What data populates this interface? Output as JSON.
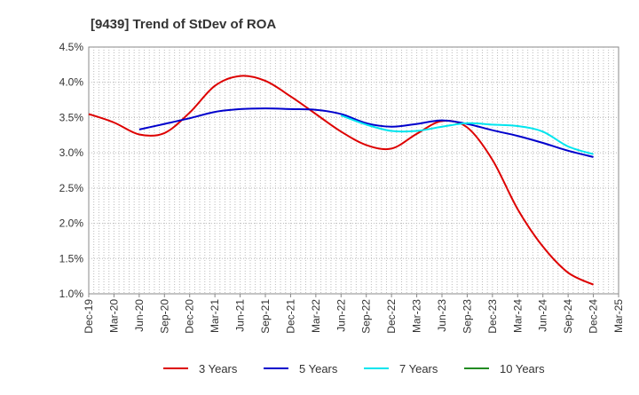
{
  "chart_data": {
    "type": "line",
    "title": "[9439]  Trend of StDev of ROA",
    "xlabel": "",
    "ylabel": "",
    "x_ticks": [
      "Dec-19",
      "Mar-20",
      "Jun-20",
      "Sep-20",
      "Dec-20",
      "Mar-21",
      "Jun-21",
      "Sep-21",
      "Dec-21",
      "Mar-22",
      "Jun-22",
      "Sep-22",
      "Dec-22",
      "Mar-23",
      "Jun-23",
      "Sep-23",
      "Dec-23",
      "Mar-24",
      "Jun-24",
      "Sep-24",
      "Dec-24",
      "Mar-25"
    ],
    "y_ticks": [
      "4.5%",
      "4.0%",
      "3.5%",
      "3.0%",
      "2.5%",
      "2.0%",
      "1.5%",
      "1.0%"
    ],
    "ylim": [
      1.0,
      4.5
    ],
    "grid": true,
    "legend_position": "bottom",
    "series": [
      {
        "name": "3 Years",
        "color": "#dd0000",
        "x": [
          "Dec-19",
          "Mar-20",
          "Jun-20",
          "Sep-20",
          "Dec-20",
          "Mar-21",
          "Jun-21",
          "Sep-21",
          "Dec-21",
          "Mar-22",
          "Jun-22",
          "Sep-22",
          "Dec-22",
          "Mar-23",
          "Jun-23",
          "Sep-23",
          "Dec-23",
          "Mar-24",
          "Jun-24",
          "Sep-24",
          "Dec-24"
        ],
        "values": [
          3.55,
          3.43,
          3.26,
          3.28,
          3.57,
          3.95,
          4.09,
          4.02,
          3.8,
          3.55,
          3.3,
          3.11,
          3.06,
          3.27,
          3.45,
          3.36,
          2.9,
          2.2,
          1.67,
          1.3,
          1.13
        ]
      },
      {
        "name": "5 Years",
        "color": "#0000cc",
        "x": [
          "Jun-20",
          "Sep-20",
          "Dec-20",
          "Mar-21",
          "Jun-21",
          "Sep-21",
          "Dec-21",
          "Mar-22",
          "Jun-22",
          "Sep-22",
          "Dec-22",
          "Mar-23",
          "Jun-23",
          "Sep-23",
          "Dec-23",
          "Mar-24",
          "Jun-24",
          "Sep-24",
          "Dec-24"
        ],
        "values": [
          3.33,
          3.41,
          3.49,
          3.58,
          3.62,
          3.63,
          3.62,
          3.61,
          3.55,
          3.42,
          3.37,
          3.41,
          3.46,
          3.41,
          3.32,
          3.24,
          3.14,
          3.03,
          2.94
        ]
      },
      {
        "name": "7 Years",
        "color": "#00e5ee",
        "x": [
          "Jun-22",
          "Sep-22",
          "Dec-22",
          "Mar-23",
          "Jun-23",
          "Sep-23",
          "Dec-23",
          "Mar-24",
          "Jun-24",
          "Sep-24",
          "Dec-24"
        ],
        "values": [
          3.53,
          3.4,
          3.31,
          3.31,
          3.37,
          3.42,
          3.4,
          3.38,
          3.3,
          3.09,
          2.98
        ]
      },
      {
        "name": "10 Years",
        "color": "#228b22",
        "x": [],
        "values": []
      }
    ]
  }
}
